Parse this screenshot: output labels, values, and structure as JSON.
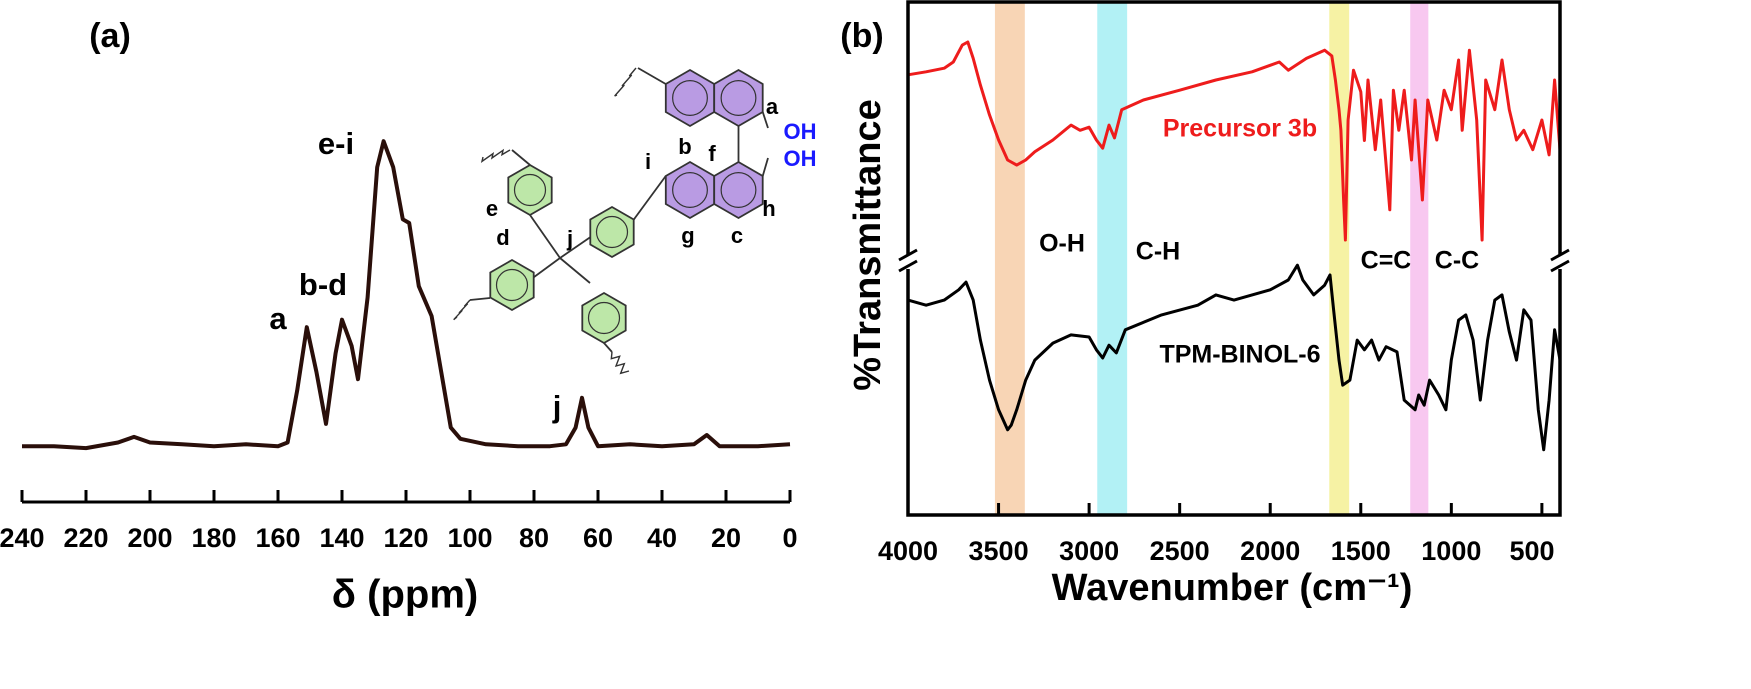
{
  "chart_data": [
    {
      "type": "line",
      "title": "(a)",
      "xlabel": "δ (ppm)",
      "color": "#2a0f0a",
      "xlim": [
        240,
        0
      ],
      "xticks": [
        240,
        220,
        200,
        180,
        160,
        140,
        120,
        100,
        80,
        60,
        40,
        20,
        0
      ],
      "ylim": [
        0,
        100
      ],
      "x": [
        240,
        230,
        220,
        210,
        205,
        200,
        190,
        180,
        170,
        160,
        157,
        154,
        151,
        148,
        145,
        142,
        140,
        137,
        135,
        132,
        129,
        127,
        124,
        121,
        119,
        116,
        112,
        109,
        106,
        103,
        95,
        85,
        75,
        70,
        67,
        65,
        63,
        60,
        50,
        40,
        30,
        26,
        22,
        10,
        0
      ],
      "values": [
        15,
        15,
        14.5,
        16,
        17.5,
        16,
        15.5,
        15,
        15.5,
        15,
        16,
        30,
        47,
        35,
        21,
        40,
        49,
        42,
        33,
        55,
        90,
        97,
        90,
        76,
        75,
        58,
        50,
        35,
        20,
        17,
        15.5,
        15,
        15,
        15.5,
        20,
        28,
        20,
        15,
        15.5,
        15,
        15.5,
        18,
        15,
        15,
        15.5
      ],
      "annotations": [
        "a",
        "b-d",
        "e-i",
        "j"
      ],
      "structure_labels": [
        "a",
        "OH",
        "OH",
        "b",
        "f",
        "i",
        "h",
        "c",
        "g",
        "e",
        "d",
        "j"
      ]
    },
    {
      "type": "line",
      "title": "(b)",
      "xlabel": "Wavenumber (cm⁻¹)",
      "ylabel": "%Transmittance",
      "xlim": [
        4000,
        400
      ],
      "xticks": [
        4000,
        3500,
        3000,
        2500,
        2000,
        1500,
        1000,
        500
      ],
      "ylim": [
        0,
        100
      ],
      "axis_break": true,
      "bands": [
        {
          "label": "O-H",
          "from": 3520,
          "to": 3355,
          "color": "#f8d5b5"
        },
        {
          "label": "C-H",
          "from": 2955,
          "to": 2790,
          "color": "#b2f1f5"
        },
        {
          "label": "C=C",
          "from": 1674,
          "to": 1564,
          "color": "#f6f2a4"
        },
        {
          "label": "C-C",
          "from": 1227,
          "to": 1127,
          "color": "#f8c8f0"
        }
      ],
      "series": [
        {
          "name": "Precursor 3b",
          "color": "#ee1c1c",
          "x": [
            4000,
            3900,
            3800,
            3750,
            3700,
            3670,
            3640,
            3600,
            3550,
            3500,
            3450,
            3400,
            3350,
            3300,
            3200,
            3100,
            3050,
            3000,
            2960,
            2925,
            2890,
            2860,
            2820,
            2700,
            2500,
            2300,
            2100,
            1950,
            1900,
            1800,
            1700,
            1660,
            1640,
            1620,
            1610,
            1595,
            1585,
            1570,
            1540,
            1500,
            1480,
            1460,
            1420,
            1390,
            1340,
            1320,
            1290,
            1260,
            1220,
            1200,
            1160,
            1130,
            1080,
            1040,
            1000,
            960,
            940,
            900,
            860,
            830,
            810,
            760,
            720,
            680,
            640,
            600,
            550,
            500,
            460,
            430,
            400
          ],
          "values": [
            85.8,
            86.4,
            87.1,
            88.3,
            91.6,
            92.2,
            89,
            83.8,
            78,
            73.1,
            69.2,
            68.2,
            69.2,
            70.8,
            73.1,
            76,
            75,
            75.6,
            73.1,
            71.5,
            76,
            73.5,
            79,
            80.9,
            82.8,
            84.8,
            86.4,
            88.3,
            86.7,
            89,
            90.6,
            89.5,
            84.8,
            79,
            75,
            61.4,
            53.6,
            77,
            86.7,
            82.5,
            73,
            84.8,
            71.2,
            80.9,
            59.5,
            82.8,
            75,
            82.8,
            69.2,
            80.9,
            61.4,
            80.9,
            73.1,
            82.8,
            79,
            88.7,
            75,
            90.6,
            77,
            53.6,
            84.8,
            79,
            88.7,
            79,
            73.1,
            75,
            71.2,
            77,
            70.2,
            84.8,
            71.2
          ]
        },
        {
          "name": "TPM-BINOL-6",
          "color": "#000000",
          "x": [
            4000,
            3900,
            3800,
            3720,
            3680,
            3640,
            3600,
            3550,
            3500,
            3450,
            3430,
            3400,
            3350,
            3300,
            3200,
            3100,
            3000,
            2960,
            2925,
            2890,
            2850,
            2800,
            2600,
            2400,
            2300,
            2200,
            2000,
            1900,
            1850,
            1820,
            1760,
            1700,
            1670,
            1650,
            1620,
            1600,
            1560,
            1520,
            1480,
            1440,
            1400,
            1360,
            1300,
            1260,
            1200,
            1180,
            1150,
            1120,
            1070,
            1030,
            1000,
            960,
            920,
            880,
            840,
            800,
            760,
            720,
            680,
            640,
            600,
            560,
            520,
            490,
            460,
            430,
            400
          ],
          "values": [
            41.9,
            40.9,
            41.9,
            43.9,
            45.4,
            41.9,
            34.1,
            26.3,
            20.5,
            16.6,
            17.5,
            20.5,
            26.3,
            30.2,
            33.5,
            35.1,
            34.7,
            32.2,
            30.6,
            33.1,
            31.6,
            36.1,
            39,
            40.9,
            42.9,
            41.9,
            43.9,
            45.8,
            48.7,
            45.8,
            42.9,
            44.8,
            46.8,
            40,
            30.2,
            25.3,
            26.3,
            34.1,
            32.2,
            34.1,
            30.2,
            32.8,
            31.8,
            22.4,
            20.5,
            23.4,
            21.4,
            26.3,
            23.4,
            20.5,
            30.2,
            38,
            39,
            34.1,
            22.4,
            34.1,
            41.9,
            42.9,
            35.7,
            30.2,
            40,
            38,
            20.5,
            12.7,
            22.4,
            36.1,
            30.2
          ]
        }
      ]
    }
  ]
}
